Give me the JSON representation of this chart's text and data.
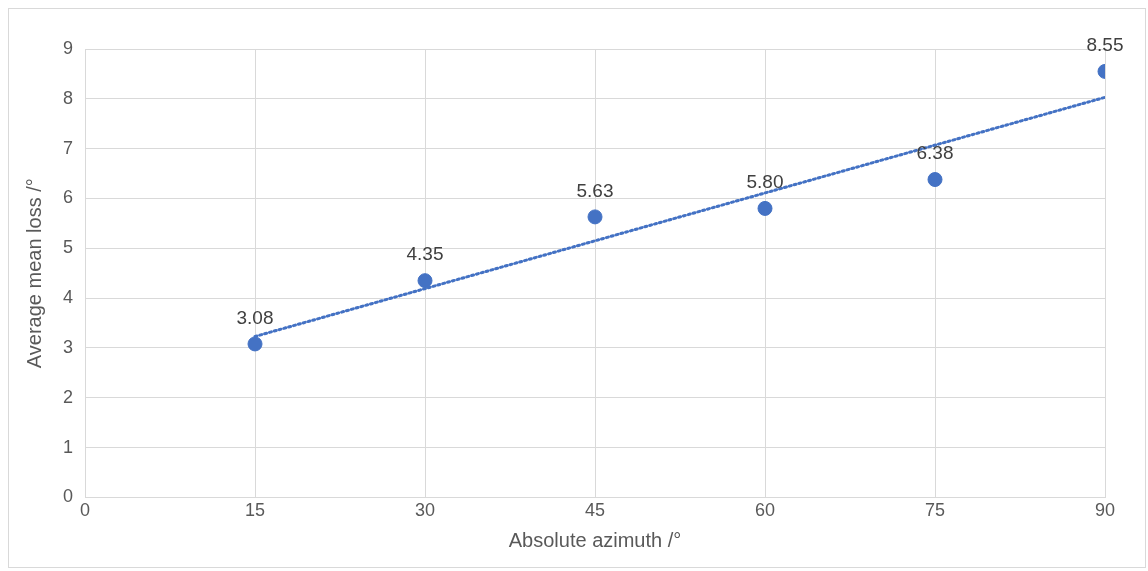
{
  "chart_data": {
    "type": "scatter",
    "xlabel": "Absolute azimuth /°",
    "ylabel": "Average mean loss /°",
    "xlim": [
      0,
      90
    ],
    "xticks": [
      0,
      15,
      30,
      45,
      60,
      75,
      90
    ],
    "ylim": [
      0,
      9
    ],
    "yticks": [
      0,
      1,
      2,
      3,
      4,
      5,
      6,
      7,
      8,
      9
    ],
    "grid": true,
    "legend": false,
    "marker": "circle",
    "series": [
      {
        "color": "#4472c4",
        "x": [
          15,
          30,
          45,
          60,
          75,
          90
        ],
        "values": [
          3.08,
          4.35,
          5.63,
          5.8,
          6.38,
          8.55
        ],
        "value_labels": [
          "3.08",
          "4.35",
          "5.63",
          "5.80",
          "6.38",
          "8.55"
        ]
      },
      {
        "type": "line",
        "color": "#4472c4",
        "line_style": "dotted",
        "marker": "none",
        "x": [
          15,
          90
        ],
        "values": [
          3.23,
          8.03
        ]
      }
    ]
  }
}
